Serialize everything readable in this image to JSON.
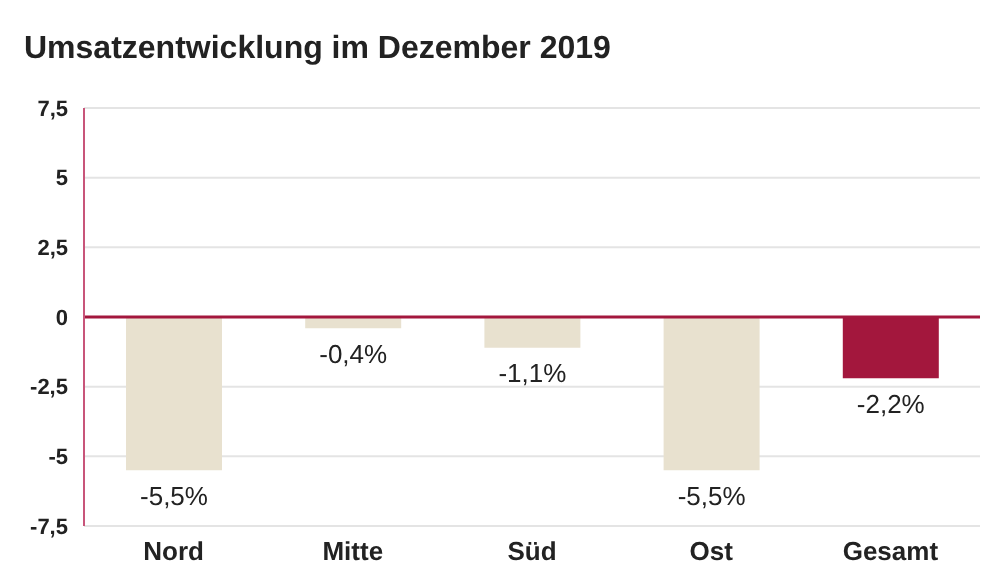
{
  "chart_data": {
    "type": "bar",
    "title": "Umsatzentwicklung im Dezember 2019",
    "categories": [
      "Nord",
      "Mitte",
      "Süd",
      "Ost",
      "Gesamt"
    ],
    "values": [
      -5.5,
      -0.4,
      -1.1,
      -5.5,
      -2.2
    ],
    "colors": [
      "#e8e1cf",
      "#e8e1cf",
      "#e8e1cf",
      "#e8e1cf",
      "#a3173d"
    ],
    "value_labels": [
      "-5,5%",
      "-0,4%",
      "-1,1%",
      "-5,5%",
      "-2,2%"
    ],
    "ylim": [
      -7.5,
      7.5
    ],
    "yticks": [
      {
        "value": -7.5,
        "label": "-7,5"
      },
      -5,
      {
        "value": -2.5,
        "label": "-2,5"
      },
      0,
      {
        "value": 2.5,
        "label": "2,5"
      },
      5,
      {
        "value": 7.5,
        "label": "7,5"
      }
    ],
    "ref_lines": [
      {
        "axis": "y",
        "value": 0,
        "color": "#a3173d"
      }
    ],
    "grid": "y"
  }
}
